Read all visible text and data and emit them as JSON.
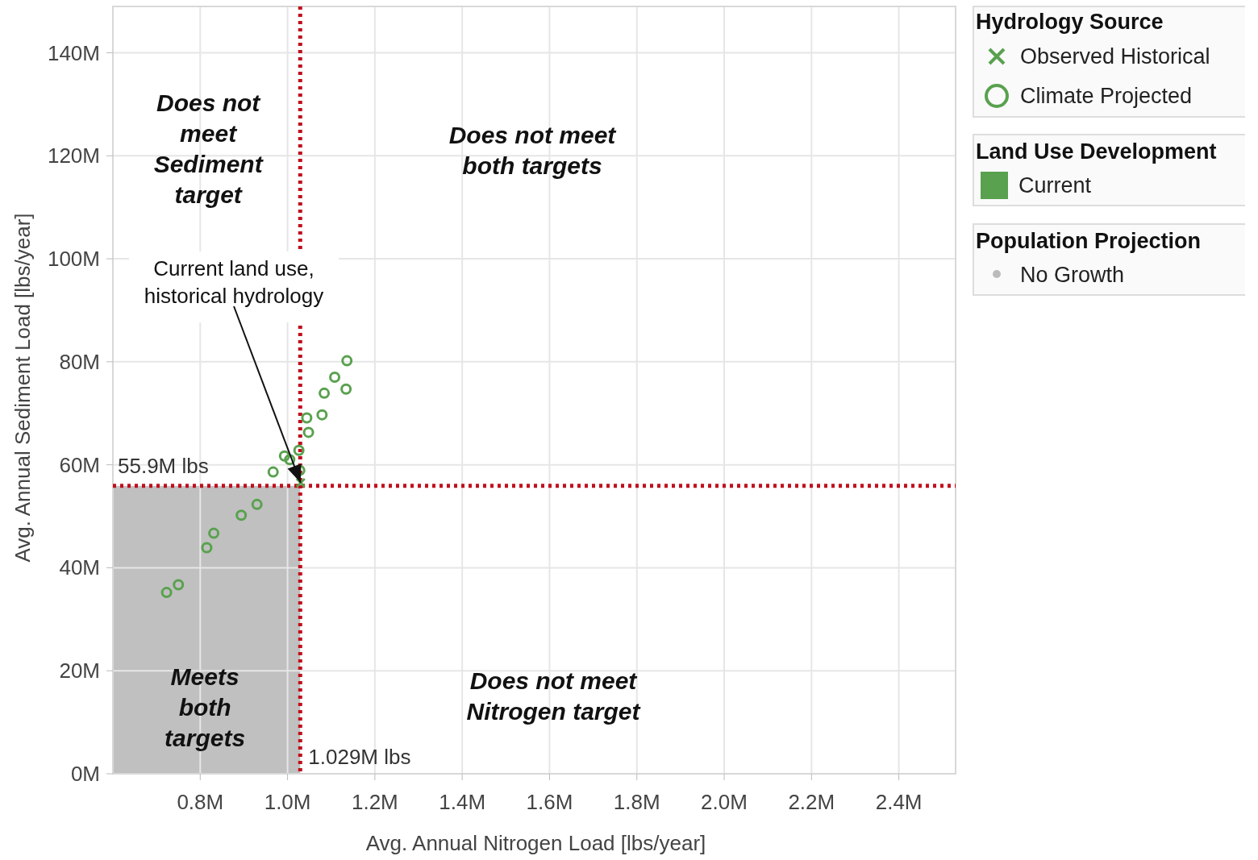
{
  "chart_data": {
    "type": "scatter",
    "xlabel": "Avg. Annual Nitrogen Load [lbs/year]",
    "ylabel": "Avg. Annual Sediment Load  [lbs/year]",
    "xlim": [
      0.6,
      2.53
    ],
    "ylim": [
      0,
      149
    ],
    "xticks": [
      {
        "value": 0.8,
        "label": "0.8M"
      },
      {
        "value": 1.0,
        "label": "1.0M"
      },
      {
        "value": 1.2,
        "label": "1.2M"
      },
      {
        "value": 1.4,
        "label": "1.4M"
      },
      {
        "value": 1.6,
        "label": "1.6M"
      },
      {
        "value": 1.8,
        "label": "1.8M"
      },
      {
        "value": 2.0,
        "label": "2.0M"
      },
      {
        "value": 2.2,
        "label": "2.2M"
      },
      {
        "value": 2.4,
        "label": "2.4M"
      }
    ],
    "yticks": [
      {
        "value": 0,
        "label": "0M"
      },
      {
        "value": 20,
        "label": "20M"
      },
      {
        "value": 40,
        "label": "40M"
      },
      {
        "value": 60,
        "label": "60M"
      },
      {
        "value": 80,
        "label": "80M"
      },
      {
        "value": 100,
        "label": "100M"
      },
      {
        "value": 120,
        "label": "120M"
      },
      {
        "value": 140,
        "label": "140M"
      }
    ],
    "grid": true,
    "legend": "right",
    "legend_title": "Hydrology Source",
    "series": [
      {
        "name": "Observed Historical",
        "color": "#59a14f",
        "marker": "cross",
        "x": [
          1.03
        ],
        "values": [
          56.5
        ]
      },
      {
        "name": "Climate Projected",
        "color": "#59a14f",
        "marker": "circle",
        "x": [
          0.723,
          0.75,
          0.815,
          0.831,
          0.894,
          0.93,
          0.967,
          0.993,
          1.005,
          1.026,
          1.028,
          1.044,
          1.048,
          1.079,
          1.084,
          1.108,
          1.136,
          1.134
        ],
        "values": [
          35.2,
          36.7,
          43.9,
          46.7,
          50.2,
          52.3,
          58.6,
          61.7,
          61.0,
          62.8,
          58.9,
          69.1,
          66.3,
          69.7,
          73.9,
          77.0,
          80.2,
          74.7
        ]
      }
    ],
    "ref_lines": [
      {
        "axis": "x",
        "value": 1.029,
        "label": "1.029M lbs",
        "color": "#c0101e",
        "line_style": "dotted"
      },
      {
        "axis": "y",
        "value": 55.9,
        "label": "55.9M lbs",
        "color": "#c0101e",
        "line_style": "dotted"
      }
    ],
    "bands": [
      {
        "axis": "x",
        "from": 0.6,
        "to": 1.029,
        "color": "#c0c0c0"
      }
    ],
    "annotations": [
      {
        "text": "Current land use,\nhistorical hydrology",
        "x": 1.03,
        "y": 56.5
      },
      "Does not\nmeet\nSediment\ntarget",
      "Does not meet\nboth targets",
      "Meets\nboth\ntargets",
      "Does not meet\nNitrogen target",
      "Land Use Development",
      "Current",
      "Population Projection",
      "No Growth"
    ]
  }
}
